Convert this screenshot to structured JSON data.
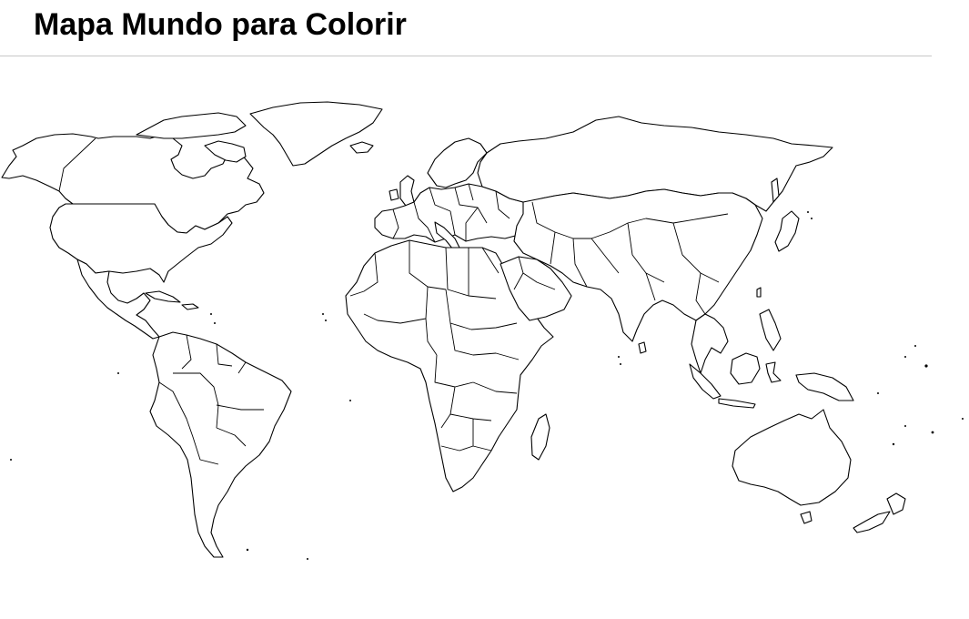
{
  "page": {
    "title": "Mapa Mundo para Colorir"
  },
  "colors": {
    "background": "#ffffff",
    "outline": "#000000",
    "rule": "#c8c8c8"
  },
  "map": {
    "style": "blank outline world map with country borders",
    "projection": "miller-like"
  }
}
